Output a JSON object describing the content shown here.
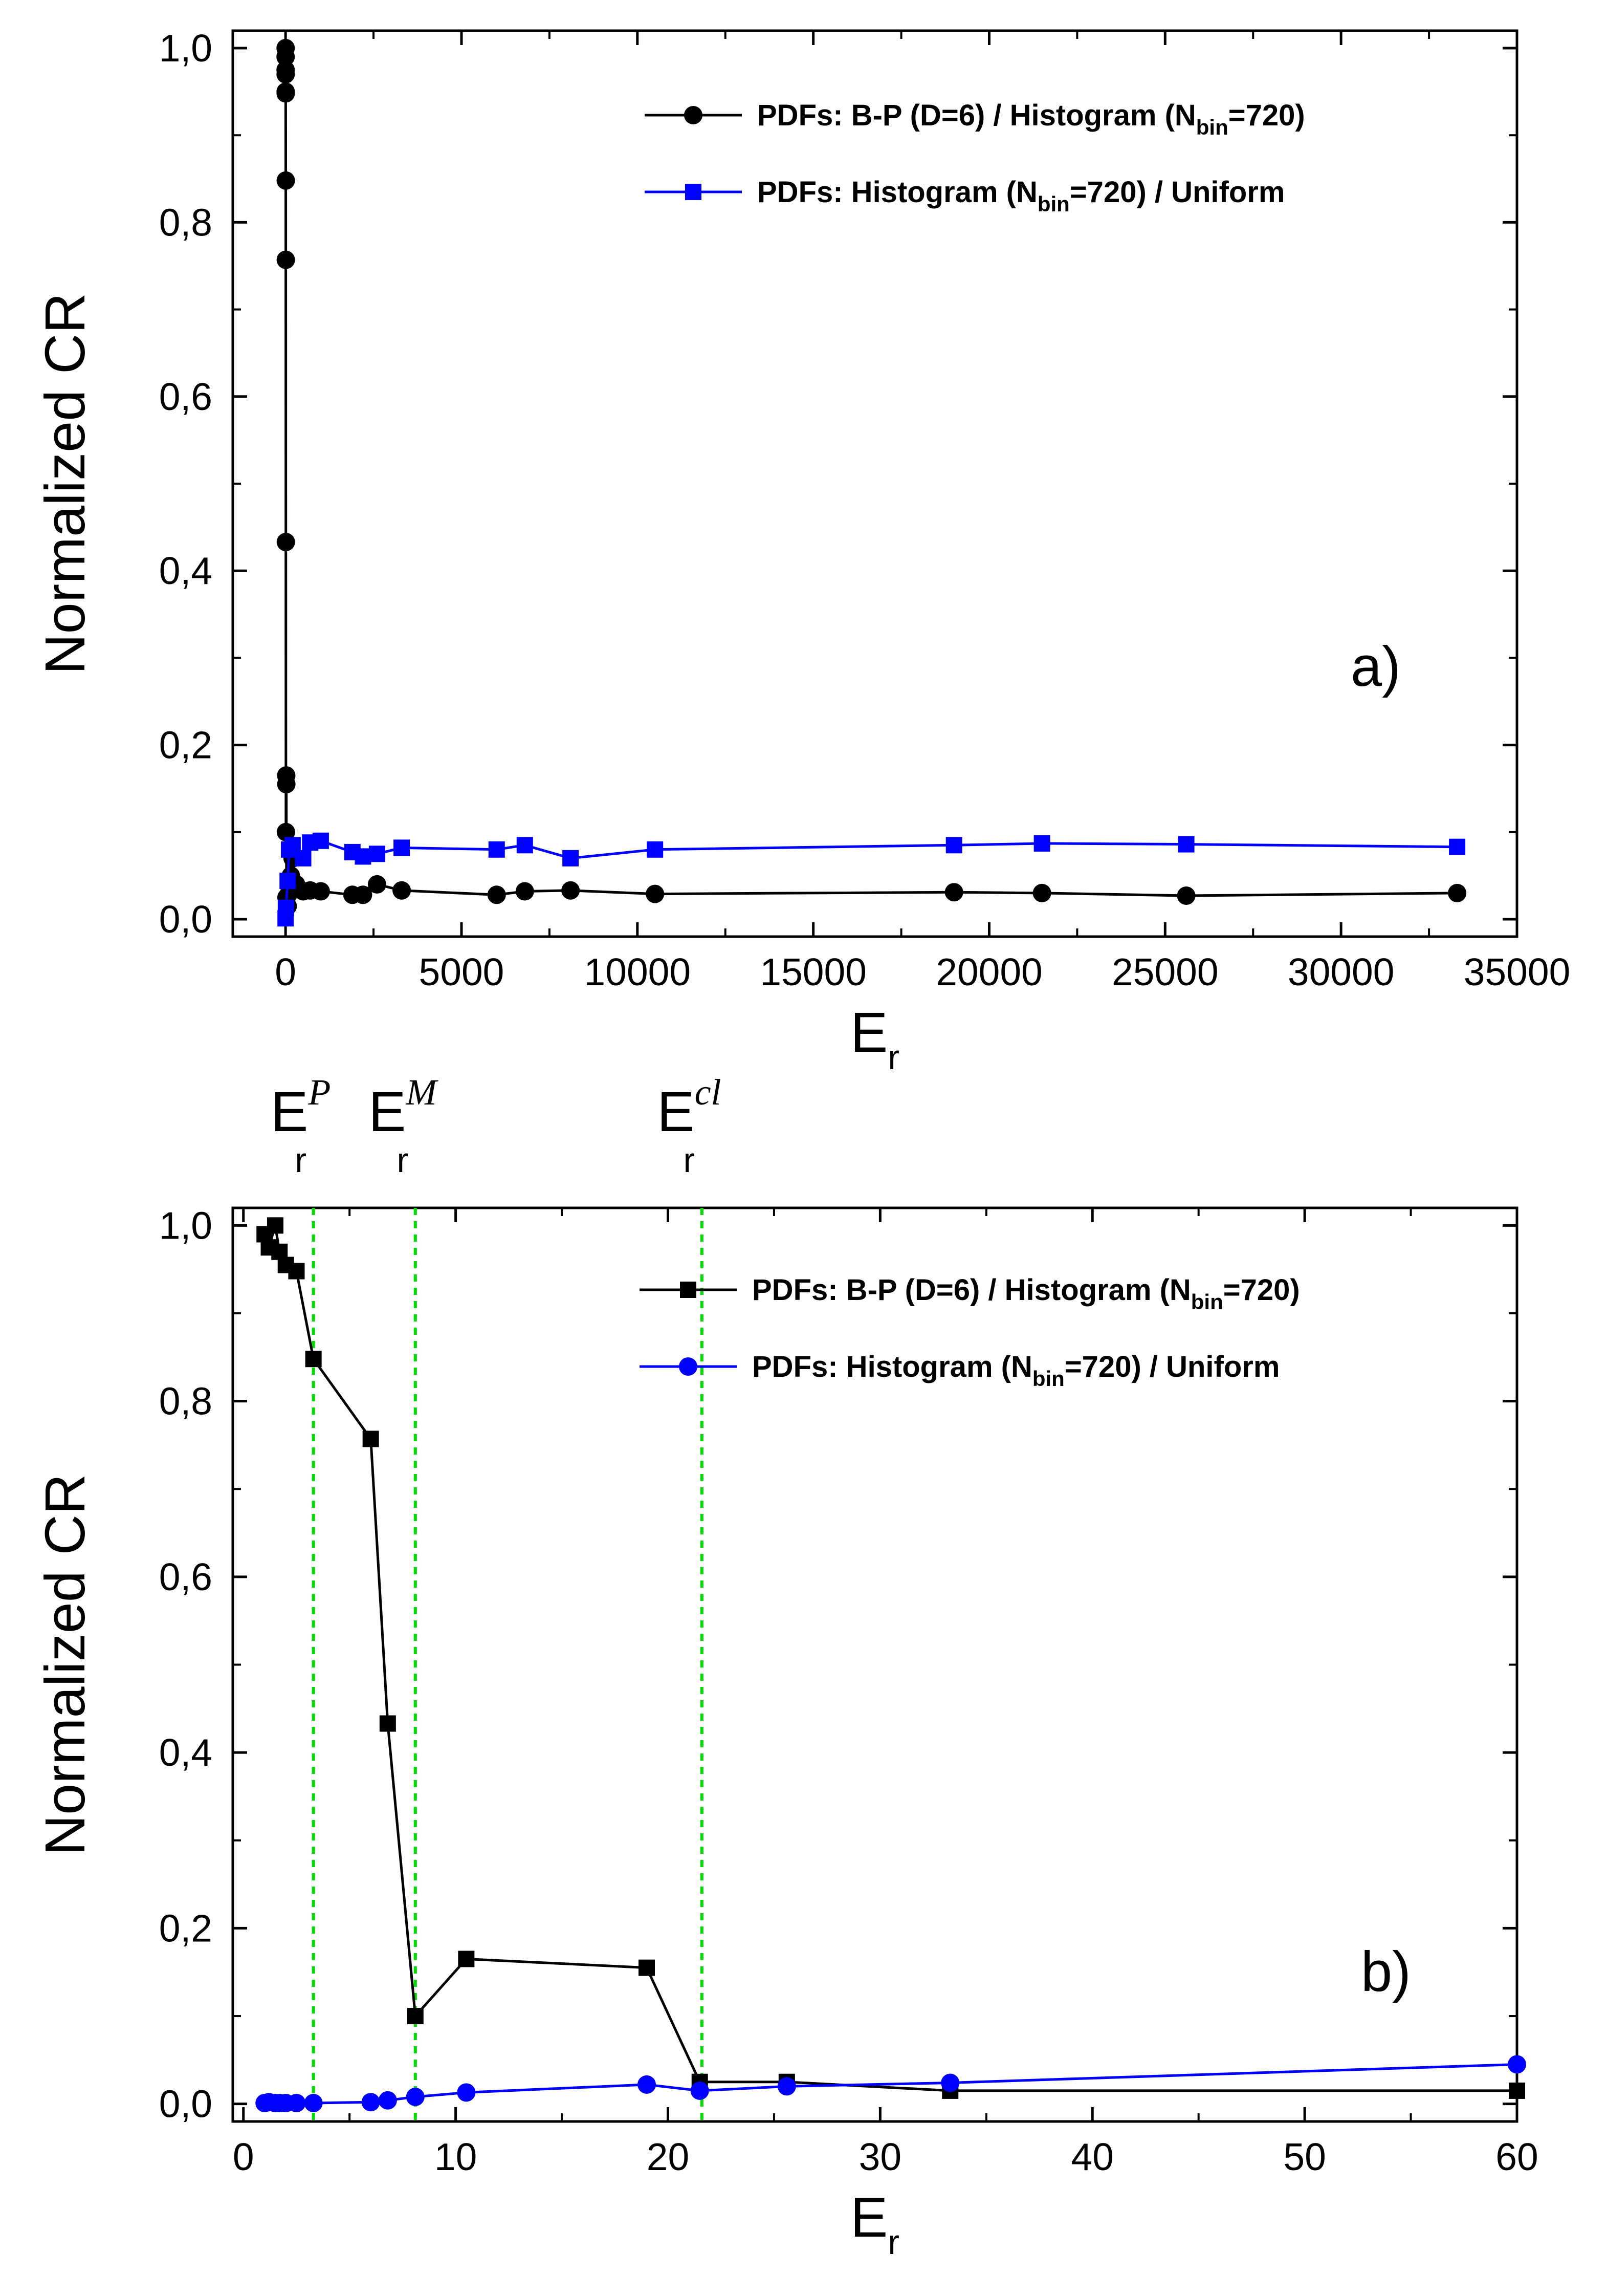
{
  "chart_data": [
    {
      "type": "line",
      "panel": "a)",
      "xlabel": "E",
      "xlabel_sub": "r",
      "ylabel": "Normalized CR",
      "xlim": [
        -1500,
        35000
      ],
      "ylim": [
        -0.02,
        1.02
      ],
      "x_ticks": [
        0,
        5000,
        10000,
        15000,
        20000,
        25000,
        30000,
        35000
      ],
      "x_tick_labels": [
        "0",
        "5000",
        "10000",
        "15000",
        "20000",
        "25000",
        "30000",
        "35000"
      ],
      "y_ticks": [
        0,
        0.2,
        0.4,
        0.6,
        0.8,
        1.0
      ],
      "y_tick_labels": [
        "0,0",
        "0,2",
        "0,4",
        "0,6",
        "0,8",
        "1,0"
      ],
      "legend_position": "top-right",
      "series": [
        {
          "name": "PDFs: B-P (D=6) / Histogram (N",
          "name_sub": "bin",
          "name_tail": "=720)",
          "marker": "circle",
          "color": "#000000",
          "x": [
            1,
            1.2,
            1.5,
            2,
            2.5,
            3.3,
            6,
            6.8,
            8.1,
            10.5,
            19,
            21.5,
            25.6,
            33.3,
            60,
            100,
            150,
            200,
            300,
            500,
            700,
            1000,
            1900,
            2200,
            2600,
            3300,
            6000,
            6800,
            8100,
            10500,
            19000,
            21500,
            25600,
            33300
          ],
          "y": [
            0.99,
            0.975,
            1.0,
            0.97,
            0.95,
            0.948,
            0.848,
            0.757,
            0.433,
            0.1,
            0.165,
            0.155,
            0.025,
            0.025,
            0.015,
            0.03,
            0.05,
            0.07,
            0.04,
            0.032,
            0.033,
            0.032,
            0.028,
            0.028,
            0.04,
            0.033,
            0.028,
            0.032,
            0.033,
            0.029,
            0.031,
            0.03,
            0.027,
            0.03
          ]
        },
        {
          "name": "PDFs: Histogram (N",
          "name_sub": "bin",
          "name_tail": "=720) / Uniform",
          "marker": "square",
          "color": "#0000ff",
          "x": [
            1,
            10.5,
            60,
            100,
            200,
            500,
            700,
            1000,
            1900,
            2200,
            2600,
            3300,
            6000,
            6800,
            8100,
            10500,
            19000,
            21500,
            25600,
            33300
          ],
          "y": [
            0.001,
            0.013,
            0.044,
            0.08,
            0.085,
            0.07,
            0.088,
            0.09,
            0.077,
            0.072,
            0.075,
            0.082,
            0.08,
            0.085,
            0.07,
            0.08,
            0.085,
            0.087,
            0.086,
            0.083
          ]
        }
      ]
    },
    {
      "type": "line",
      "panel": "b)",
      "xlabel": "E",
      "xlabel_sub": "r",
      "ylabel": "Normalized CR",
      "xlim": [
        -0.5,
        60
      ],
      "ylim": [
        -0.02,
        1.02
      ],
      "x_ticks": [
        0,
        10,
        20,
        30,
        40,
        50,
        60
      ],
      "x_tick_labels": [
        "0",
        "10",
        "20",
        "30",
        "40",
        "50",
        "60"
      ],
      "y_ticks": [
        0,
        0.2,
        0.4,
        0.6,
        0.8,
        1.0
      ],
      "y_tick_labels": [
        "0,0",
        "0,2",
        "0,4",
        "0,6",
        "0,8",
        "1,0"
      ],
      "legend_position": "top-right",
      "reference_lines": [
        {
          "x": 3.3,
          "label": "E",
          "sup": "P",
          "sub": "r",
          "color": "#00dd00"
        },
        {
          "x": 8.1,
          "label": "E",
          "sup": "M",
          "sub": "r",
          "color": "#00dd00"
        },
        {
          "x": 21.6,
          "label": "E",
          "sup": "cl",
          "sub": "r",
          "color": "#00dd00"
        }
      ],
      "series": [
        {
          "name": "PDFs: B-P (D=6) / Histogram (N",
          "name_sub": "bin",
          "name_tail": "=720)",
          "marker": "square",
          "color": "#000000",
          "x": [
            1,
            1.2,
            1.5,
            1.7,
            2,
            2.5,
            3.3,
            6,
            6.8,
            8.1,
            10.5,
            19,
            21.5,
            25.6,
            33.3,
            60
          ],
          "y": [
            0.99,
            0.975,
            1.0,
            0.97,
            0.955,
            0.948,
            0.848,
            0.757,
            0.433,
            0.1,
            0.165,
            0.155,
            0.025,
            0.025,
            0.015,
            0.015
          ]
        },
        {
          "name": "PDFs: Histogram (N",
          "name_sub": "bin",
          "name_tail": "=720) / Uniform",
          "marker": "circle",
          "color": "#0000ff",
          "x": [
            1,
            1.2,
            1.5,
            1.7,
            2,
            2.5,
            3.3,
            6,
            6.8,
            8.1,
            10.5,
            19,
            21.5,
            25.6,
            33.3,
            60
          ],
          "y": [
            0.001,
            0.002,
            0.001,
            0.001,
            0.001,
            0.001,
            0.001,
            0.002,
            0.004,
            0.008,
            0.013,
            0.022,
            0.015,
            0.02,
            0.024,
            0.045
          ]
        }
      ]
    }
  ]
}
